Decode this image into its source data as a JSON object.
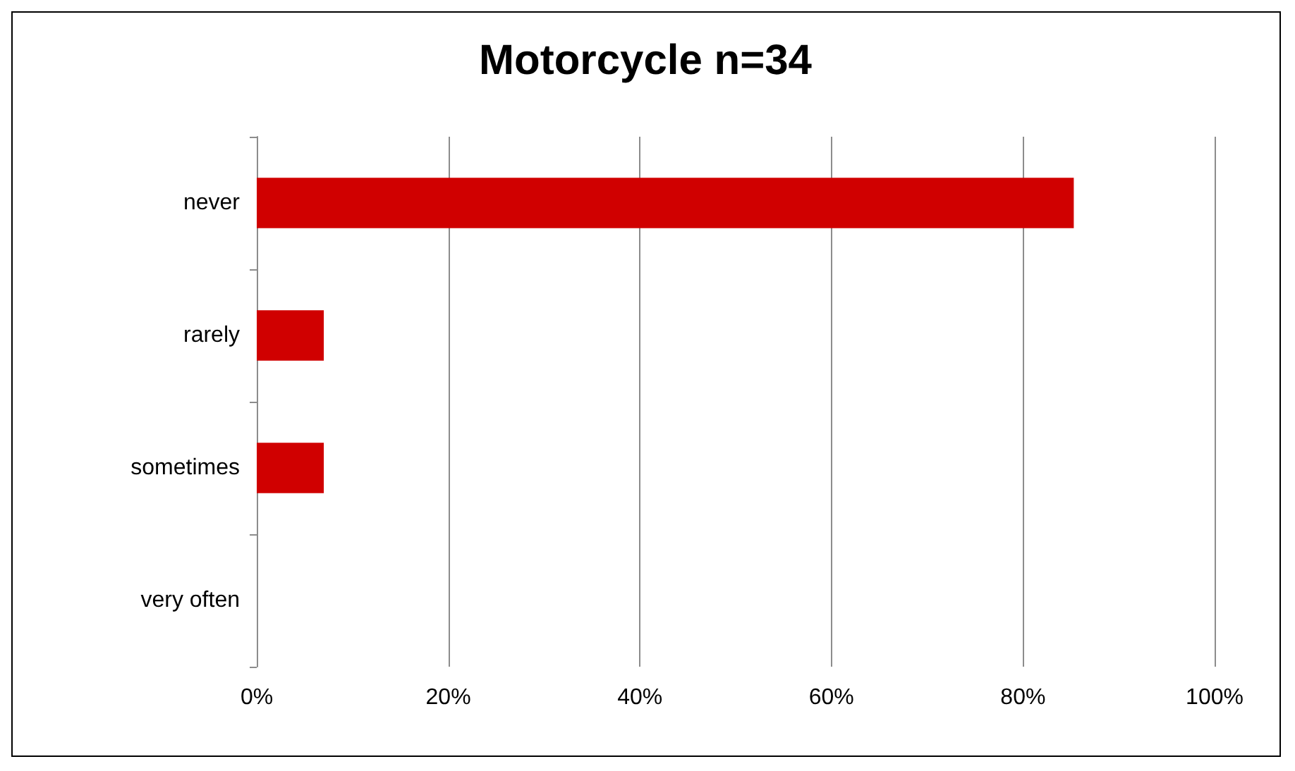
{
  "chart_data": {
    "type": "bar",
    "title": "Motorcycle n=34",
    "orientation": "horizontal",
    "categories": [
      "never",
      "rarely",
      "sometimes",
      "very often"
    ],
    "values": [
      85.3,
      7,
      7,
      0
    ],
    "color": "#d00000",
    "xlim": [
      0,
      100
    ],
    "xticks": [
      {
        "value": 0,
        "label": "0%"
      },
      {
        "value": 20,
        "label": "20%"
      },
      {
        "value": 40,
        "label": "40%"
      },
      {
        "value": 60,
        "label": "60%"
      },
      {
        "value": 80,
        "label": "80%"
      },
      {
        "value": 100,
        "label": "100%"
      }
    ],
    "grid": "x"
  }
}
